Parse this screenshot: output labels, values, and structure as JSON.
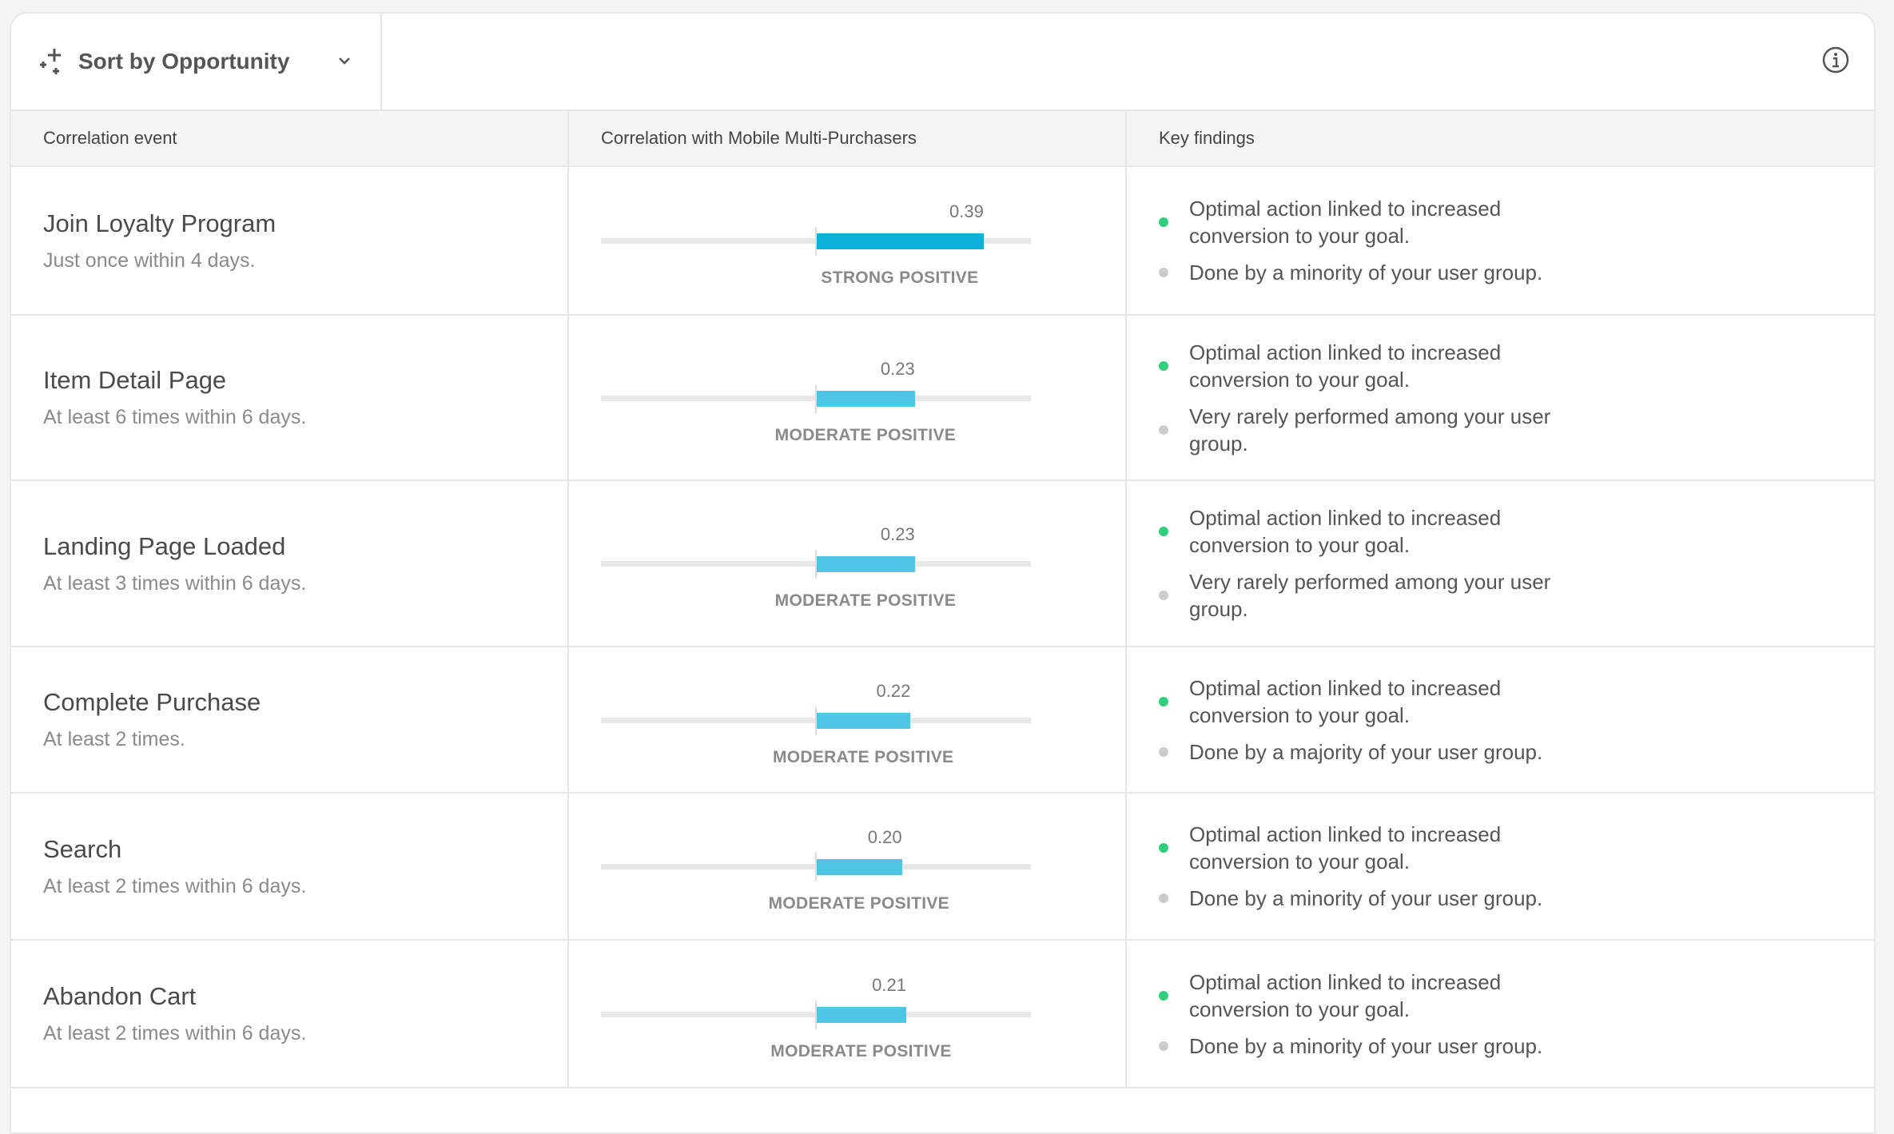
{
  "toolbar": {
    "sort_label": "Sort by Opportunity",
    "sort_icon": "sparkle-icon",
    "chevron_icon": "chevron-down-icon",
    "info_icon": "info-icon"
  },
  "table": {
    "headers": [
      "Correlation event",
      "Correlation with Mobile Multi-Purchasers",
      "Key findings"
    ],
    "rows": [
      {
        "name": "Join Loyalty Program",
        "condition": "Just once within 4 days.",
        "value": 0.39,
        "value_label": "0.39",
        "strength": "STRONG POSITIVE",
        "bar_color": "#0bb1d7",
        "findings": [
          {
            "text": "Optimal action linked to increased conversion to your goal.",
            "status": "positive"
          },
          {
            "text": "Done by a minority of your user group.",
            "status": "neutral"
          }
        ]
      },
      {
        "name": "Item Detail Page",
        "condition": "At least 6 times within 6 days.",
        "value": 0.23,
        "value_label": "0.23",
        "strength": "MODERATE POSITIVE",
        "bar_color": "#4fc5e6",
        "findings": [
          {
            "text": "Optimal action linked to increased conversion to your goal.",
            "status": "positive"
          },
          {
            "text": "Very rarely performed among your user group.",
            "status": "neutral"
          }
        ]
      },
      {
        "name": "Landing Page Loaded",
        "condition": "At least 3 times within 6 days.",
        "value": 0.23,
        "value_label": "0.23",
        "strength": "MODERATE POSITIVE",
        "bar_color": "#4fc5e6",
        "findings": [
          {
            "text": "Optimal action linked to increased conversion to your goal.",
            "status": "positive"
          },
          {
            "text": "Very rarely performed among your user group.",
            "status": "neutral"
          }
        ]
      },
      {
        "name": "Complete Purchase",
        "condition": "At least 2 times.",
        "value": 0.22,
        "value_label": "0.22",
        "strength": "MODERATE POSITIVE",
        "bar_color": "#4fc5e6",
        "findings": [
          {
            "text": "Optimal action linked to increased conversion to your goal.",
            "status": "positive"
          },
          {
            "text": "Done by a majority of your user group.",
            "status": "neutral"
          }
        ]
      },
      {
        "name": "Search",
        "condition": "At least 2 times within 6 days.",
        "value": 0.2,
        "value_label": "0.20",
        "strength": "MODERATE POSITIVE",
        "bar_color": "#4fc5e6",
        "findings": [
          {
            "text": "Optimal action linked to increased conversion to your goal.",
            "status": "positive"
          },
          {
            "text": "Done by a minority of your user group.",
            "status": "neutral"
          }
        ]
      },
      {
        "name": "Abandon Cart",
        "condition": "At least 2 times within 6 days.",
        "value": 0.21,
        "value_label": "0.21",
        "strength": "MODERATE POSITIVE",
        "bar_color": "#4fc5e6",
        "findings": [
          {
            "text": "Optimal action linked to increased conversion to your goal.",
            "status": "positive"
          },
          {
            "text": "Done by a minority of your user group.",
            "status": "neutral"
          }
        ]
      }
    ]
  },
  "colors": {
    "positive": "#2fcf7c",
    "neutral": "#cccccc"
  },
  "correlation_range": [
    -0.5,
    0.5
  ]
}
